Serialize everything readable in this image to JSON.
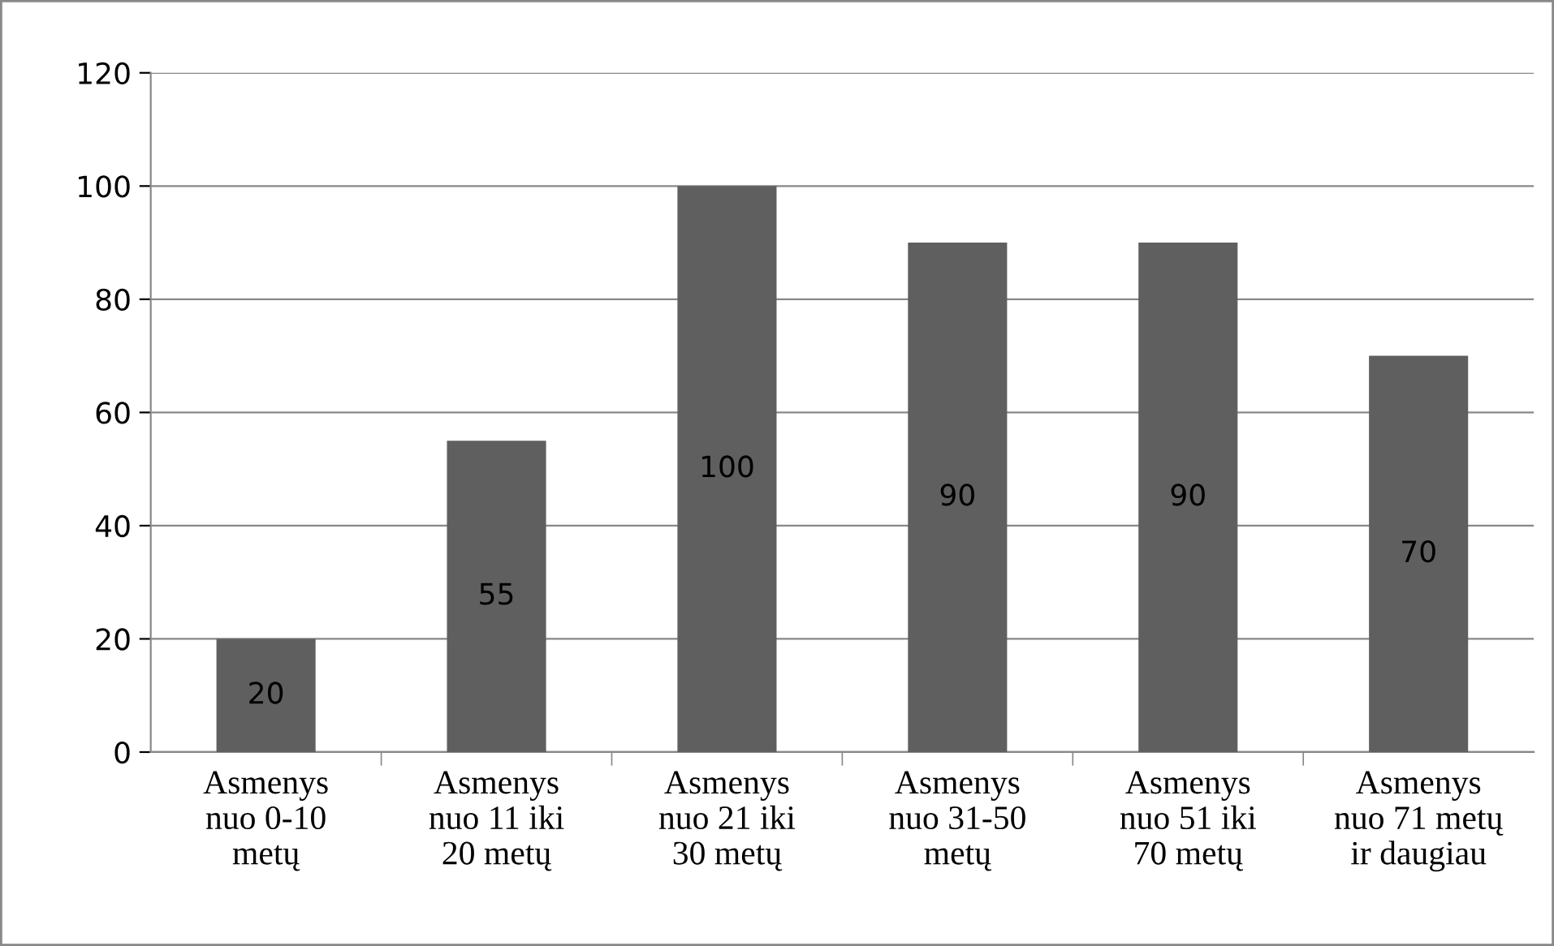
{
  "chart_data": {
    "type": "bar",
    "categories": [
      "Asmenys\nnuo 0-10\nmetų",
      "Asmenys\nnuo 11 iki\n20 metų",
      "Asmenys\nnuo 21 iki\n30 metų",
      "Asmenys\nnuo 31-50\nmetų",
      "Asmenys\nnuo 51 iki\n70 metų",
      "Asmenys\nnuo 71 metų\nir daugiau"
    ],
    "values": [
      20,
      55,
      100,
      90,
      90,
      70
    ],
    "color": "#5f5f5f",
    "ylim": [
      0,
      120
    ],
    "yticks": [
      0,
      20,
      40,
      60,
      80,
      100,
      120
    ],
    "grid": "y",
    "data_labels": true,
    "legend": false
  }
}
